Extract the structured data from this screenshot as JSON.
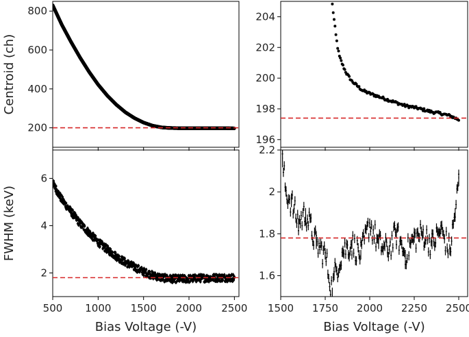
{
  "chart_data": [
    {
      "id": "centroid-full",
      "type": "scatter",
      "xlabel": "",
      "ylabel": "Centroid (ch)",
      "xlim": [
        500,
        2550
      ],
      "ylim": [
        100,
        850
      ],
      "xticks": [
        500,
        1000,
        1500,
        2000,
        2500
      ],
      "xticklabels_shown": false,
      "yticks": [
        200,
        400,
        600,
        800
      ],
      "ref_line_y": 200,
      "ref_color": "#d62728",
      "series": [
        {
          "x": [
            500,
            600,
            700,
            800,
            900,
            1000,
            1100,
            1200,
            1300,
            1400,
            1500,
            1600,
            1700,
            1800,
            1900,
            2000,
            2100,
            2200,
            2300,
            2400,
            2500
          ],
          "y": [
            830,
            730,
            643,
            562,
            488,
            422,
            366,
            319,
            280,
            250,
            227,
            211,
            202,
            199,
            198,
            198,
            198,
            198,
            198,
            198,
            197
          ]
        }
      ],
      "grid": false
    },
    {
      "id": "centroid-zoom",
      "type": "scatter",
      "xlabel": "",
      "ylabel": "",
      "xlim": [
        1500,
        2550
      ],
      "ylim": [
        195.5,
        205
      ],
      "xticks": [
        1500,
        1750,
        2000,
        2250,
        2500
      ],
      "xticklabels_shown": false,
      "yticks": [
        196,
        198,
        200,
        202,
        204
      ],
      "ref_line_y": 197.4,
      "ref_color": "#d62728",
      "series": [
        {
          "x": [
            1790,
            1800,
            1810,
            1820,
            1830,
            1850,
            1870,
            1900,
            1930,
            1960,
            2000,
            2050,
            2100,
            2150,
            2200,
            2250,
            2300,
            2350,
            2400,
            2450,
            2500
          ],
          "y": [
            204.8,
            203.8,
            202.8,
            202.0,
            201.4,
            200.8,
            200.3,
            199.8,
            199.5,
            199.2,
            199.0,
            198.8,
            198.6,
            198.4,
            198.2,
            198.1,
            197.95,
            197.8,
            197.7,
            197.55,
            197.3
          ]
        }
      ],
      "grid": false
    },
    {
      "id": "fwhm-full",
      "type": "scatter",
      "xlabel": "Bias Voltage (-V)",
      "ylabel": "FWHM (keV)",
      "xlim": [
        500,
        2550
      ],
      "ylim": [
        1,
        7.2
      ],
      "xticks": [
        500,
        1000,
        1500,
        2000,
        2500
      ],
      "yticks": [
        2,
        4,
        6
      ],
      "ref_line_y": 1.8,
      "ref_color": "#d62728",
      "series": [
        {
          "x": [
            500,
            600,
            700,
            800,
            900,
            1000,
            1100,
            1200,
            1300,
            1400,
            1500,
            1600,
            1700,
            1800,
            1900,
            2000,
            2100,
            2200,
            2300,
            2400,
            2500
          ],
          "y": [
            5.8,
            5.1,
            4.6,
            4.1,
            3.7,
            3.3,
            3.0,
            2.7,
            2.45,
            2.25,
            2.05,
            1.9,
            1.8,
            1.75,
            1.75,
            1.75,
            1.78,
            1.78,
            1.8,
            1.8,
            1.8
          ]
        }
      ],
      "grid": false
    },
    {
      "id": "fwhm-zoom",
      "type": "scatter",
      "xlabel": "Bias Voltage (-V)",
      "ylabel": "",
      "xlim": [
        1500,
        2550
      ],
      "ylim": [
        1.5,
        2.2
      ],
      "xticks": [
        1500,
        1750,
        2000,
        2250,
        2500
      ],
      "yticks": [
        1.6,
        1.8,
        2.0,
        2.2
      ],
      "ref_line_y": 1.78,
      "ref_color": "#d62728",
      "series": [
        {
          "x": [
            1510,
            1530,
            1560,
            1600,
            1640,
            1700,
            1750,
            1790,
            1800,
            1850,
            1900,
            1950,
            2000,
            2050,
            2100,
            2150,
            2200,
            2250,
            2300,
            2350,
            2400,
            2450,
            2480,
            2500
          ],
          "y": [
            2.14,
            2.0,
            1.95,
            1.85,
            1.9,
            1.75,
            1.7,
            1.52,
            1.6,
            1.72,
            1.75,
            1.7,
            1.85,
            1.75,
            1.72,
            1.8,
            1.7,
            1.78,
            1.8,
            1.75,
            1.82,
            1.72,
            1.9,
            2.05
          ]
        }
      ],
      "grid": false
    }
  ]
}
